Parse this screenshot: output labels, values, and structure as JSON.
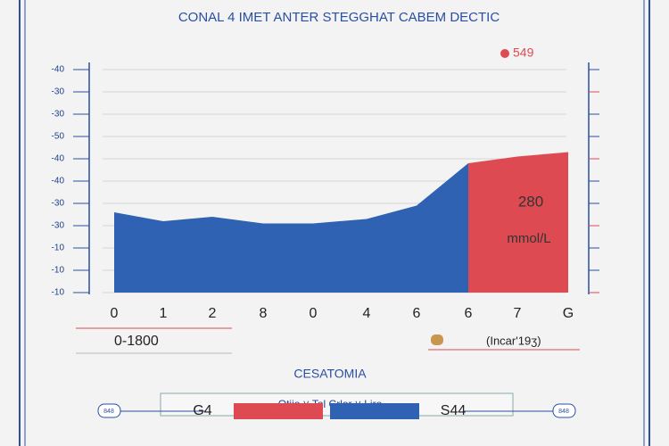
{
  "chart_data": {
    "type": "area",
    "title": "CONAL 4 IMET ANTER STEGGHAT CABEM DECTIC",
    "categories": [
      "0",
      "1",
      "2",
      "8",
      "0",
      "4",
      "6",
      "6",
      "7",
      "G"
    ],
    "series": [
      {
        "name": "S44",
        "color": "#2f62b2",
        "values": [
          3.6,
          3.2,
          3.4,
          3.1,
          3.1,
          3.3,
          3.9,
          5.8,
          null,
          null
        ]
      },
      {
        "name": "G4",
        "color": "#de4a52",
        "values": [
          null,
          null,
          null,
          null,
          null,
          null,
          null,
          5.8,
          6.1,
          6.3
        ]
      }
    ],
    "ylim": [
      0,
      10
    ],
    "yticks": [
      {
        "value": 0,
        "label": "-10"
      },
      {
        "value": 1,
        "label": "-10"
      },
      {
        "value": 2,
        "label": "-10"
      },
      {
        "value": 3,
        "label": "-30"
      },
      {
        "value": 4,
        "label": "-30"
      },
      {
        "value": 5,
        "label": "-40"
      },
      {
        "value": 6,
        "label": "-40"
      },
      {
        "value": 7,
        "label": "-50"
      },
      {
        "value": 8,
        "label": "-30"
      },
      {
        "value": 9,
        "label": "-30"
      },
      {
        "value": 10,
        "label": "-40"
      }
    ],
    "grid": true,
    "annotations": {
      "top_right": "549",
      "value": "280",
      "unit": "mmol/L",
      "range": "0-1800",
      "note": "(Incar'19ʒ)",
      "section": "CESATOMIA",
      "filter": "Otijo ˅ Tol Crlor ˅ Liro",
      "pill": "848"
    }
  }
}
